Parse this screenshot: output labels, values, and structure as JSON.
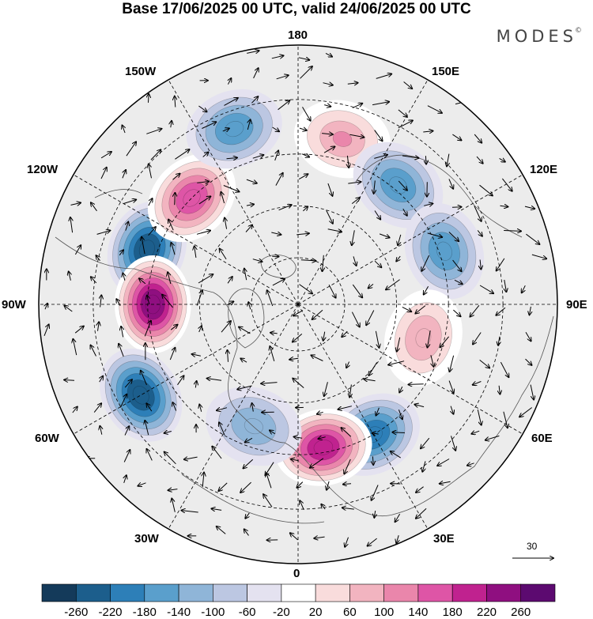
{
  "header": {
    "title": "Base 17/06/2025 00 UTC, valid 24/06/2025 00 UTC",
    "brand": "MODES",
    "brand_mark": "©"
  },
  "map": {
    "projection": "north polar stereographic",
    "center": "North Pole",
    "longitude_labels": [
      "180",
      "150E",
      "120E",
      "90E",
      "60E",
      "30E",
      "0",
      "30W",
      "60W",
      "90W",
      "120W",
      "150W"
    ],
    "anomaly_centers": [
      {
        "lon": "110W",
        "sign": "negative",
        "magnitude": -220
      },
      {
        "lon": "90W",
        "sign": "positive",
        "magnitude": 260
      },
      {
        "lon": "60W",
        "sign": "negative",
        "magnitude": -220
      },
      {
        "lon": "135W",
        "sign": "positive",
        "magnitude": 180
      },
      {
        "lon": "160W",
        "sign": "negative",
        "magnitude": -140
      },
      {
        "lon": "165E",
        "sign": "positive",
        "magnitude": 120
      },
      {
        "lon": "140E",
        "sign": "negative",
        "magnitude": -140
      },
      {
        "lon": "110E",
        "sign": "negative",
        "magnitude": -140
      },
      {
        "lon": "75E",
        "sign": "positive",
        "magnitude": 100
      },
      {
        "lon": "30E",
        "sign": "negative",
        "magnitude": -180
      },
      {
        "lon": "10E",
        "sign": "positive",
        "magnitude": 220
      },
      {
        "lon": "20W",
        "sign": "negative",
        "magnitude": -100
      }
    ]
  },
  "reference_vector": {
    "value": "30"
  },
  "colorbar": {
    "tick_labels": [
      "-260",
      "-220",
      "-180",
      "-140",
      "-100",
      "-60",
      "-20",
      "20",
      "60",
      "100",
      "140",
      "180",
      "220",
      "260"
    ],
    "colors": [
      "#143a5a",
      "#1c5e8c",
      "#2d7fb8",
      "#5a9fcc",
      "#8fb5d8",
      "#bcc7e2",
      "#e4e2f0",
      "#ffffff",
      "#f9dcdc",
      "#f2b4c0",
      "#ea86ab",
      "#de55a6",
      "#c0228f",
      "#8f0f80",
      "#5c0a70"
    ]
  }
}
